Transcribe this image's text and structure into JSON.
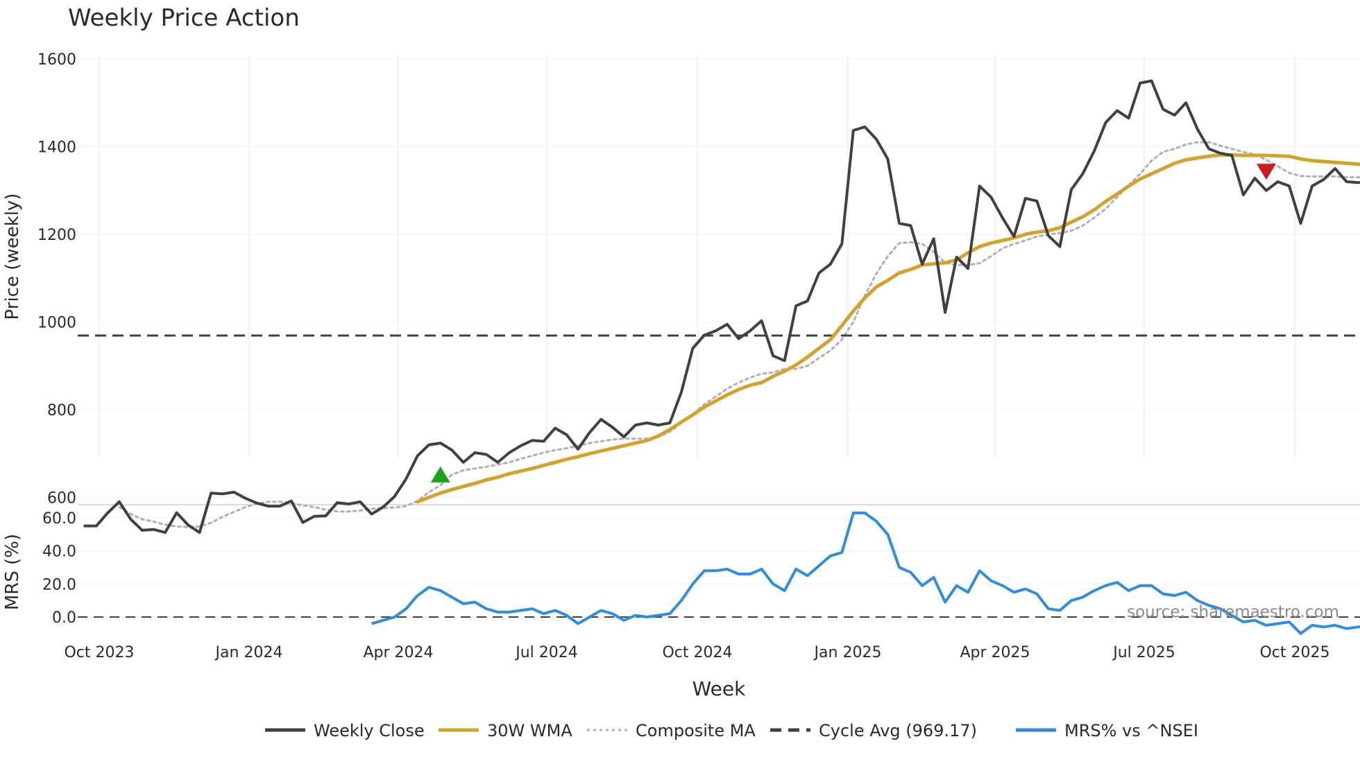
{
  "title": "Weekly Price Action",
  "watermark": "source: sharemaestro.com",
  "chart_data": {
    "type": "line",
    "xlabel": "Week",
    "x_ticks": [
      "Oct 2023",
      "Jan 2024",
      "Apr 2024",
      "Jul 2024",
      "Oct 2024",
      "Jan 2025",
      "Apr 2025",
      "Jul 2025",
      "Oct 2025"
    ],
    "price_panel": {
      "ylabel": "Price (weekly)",
      "ylim": [
        520,
        1615
      ],
      "yticks": [
        600,
        800,
        1000,
        1200,
        1400,
        1600
      ],
      "start_week_offset": -1.25,
      "series": [
        {
          "name": "Weekly Close",
          "color": "#404040",
          "style": "solid",
          "start_index": 0,
          "values": [
            535,
            535,
            565,
            590,
            550,
            525,
            527,
            520,
            565,
            537,
            520,
            610,
            608,
            612,
            598,
            587,
            580,
            580,
            592,
            543,
            557,
            558,
            588,
            585,
            590,
            562,
            578,
            602,
            642,
            695,
            720,
            724,
            708,
            680,
            702,
            698,
            680,
            702,
            718,
            730,
            728,
            758,
            743,
            710,
            748,
            778,
            760,
            738,
            765,
            770,
            765,
            770,
            840,
            940,
            970,
            980,
            995,
            962,
            980,
            1003,
            923,
            912,
            1037,
            1048,
            1112,
            1132,
            1178,
            1437,
            1445,
            1417,
            1372,
            1225,
            1220,
            1132,
            1190,
            1022,
            1148,
            1122,
            1310,
            1285,
            1238,
            1195,
            1282,
            1276,
            1197,
            1172,
            1302,
            1338,
            1390,
            1455,
            1482,
            1465,
            1545,
            1550,
            1485,
            1472,
            1500,
            1440,
            1395,
            1385,
            1380,
            1290,
            1328,
            1300,
            1320,
            1310,
            1225,
            1310,
            1325,
            1350,
            1320,
            1318,
            1320
          ]
        },
        {
          "name": "30W WMA",
          "color": "#d4a12a",
          "style": "solid",
          "start_index": 29,
          "values": [
            590,
            600,
            610,
            618,
            625,
            632,
            640,
            646,
            654,
            660,
            666,
            673,
            680,
            687,
            693,
            700,
            706,
            712,
            718,
            724,
            730,
            740,
            755,
            772,
            788,
            806,
            820,
            834,
            846,
            856,
            862,
            876,
            888,
            902,
            920,
            940,
            960,
            992,
            1025,
            1055,
            1080,
            1095,
            1112,
            1120,
            1130,
            1133,
            1135,
            1142,
            1158,
            1172,
            1180,
            1186,
            1192,
            1200,
            1205,
            1208,
            1215,
            1228,
            1240,
            1256,
            1275,
            1292,
            1310,
            1326,
            1338,
            1350,
            1362,
            1370,
            1374,
            1378,
            1381,
            1381,
            1380,
            1380,
            1380,
            1379,
            1378,
            1372,
            1368,
            1366,
            1364,
            1362,
            1360,
            1358,
            1356
          ]
        },
        {
          "name": "Composite MA",
          "color": "#b0b0b0",
          "style": "dotted",
          "start_index": 3,
          "values": [
            578,
            562,
            550,
            545,
            538,
            534,
            532,
            534,
            542,
            556,
            567,
            578,
            586,
            590,
            590,
            587,
            582,
            578,
            572,
            568,
            568,
            570,
            574,
            576,
            577,
            580,
            592,
            612,
            628,
            652,
            662,
            666,
            670,
            675,
            680,
            688,
            695,
            702,
            708,
            712,
            718,
            724,
            728,
            732,
            734,
            734,
            734,
            738,
            750,
            770,
            790,
            812,
            830,
            848,
            862,
            873,
            882,
            885,
            893,
            893,
            900,
            918,
            935,
            960,
            1000,
            1060,
            1110,
            1150,
            1180,
            1182,
            1178,
            1160,
            1135,
            1130,
            1130,
            1134,
            1150,
            1168,
            1178,
            1186,
            1195,
            1200,
            1203,
            1208,
            1220,
            1238,
            1258,
            1285,
            1312,
            1338,
            1368,
            1388,
            1395,
            1405,
            1410,
            1410,
            1402,
            1395,
            1388,
            1382,
            1370,
            1355,
            1340,
            1333,
            1332,
            1332,
            1332,
            1330,
            1330,
            1330,
            1331,
            1332,
            1332,
            1333,
            1334
          ]
        },
        {
          "name": "Cycle Avg (969.17)",
          "color": "#404040",
          "style": "dashed",
          "value": 969.17
        }
      ],
      "markers": [
        {
          "type": "buy",
          "shape": "triangle-up",
          "color": "#1aa31a",
          "week_index": 31,
          "y": 650
        },
        {
          "type": "sell",
          "shape": "triangle-down",
          "color": "#c81e1e",
          "week_index": 103,
          "y": 1345
        }
      ]
    },
    "mrs_panel": {
      "ylabel": "MRS (%)",
      "ylim": [
        -10,
        67
      ],
      "yticks": [
        0.0,
        20.0,
        40.0,
        60.0
      ],
      "ytick_labels": [
        "0.0",
        "20.0",
        "40.0",
        "60.0"
      ],
      "zero_line": 0,
      "series": [
        {
          "name": "MRS% vs ^NSEI",
          "color": "#2e8de0",
          "start_index": 25,
          "values": [
            -4,
            -2,
            0,
            5,
            13,
            18,
            16,
            12,
            8,
            9,
            5,
            3,
            3,
            4,
            5,
            2,
            4,
            1,
            -4,
            0,
            4,
            2,
            -2,
            1,
            0,
            1,
            2,
            10,
            20,
            28,
            28,
            29,
            26,
            26,
            29,
            20,
            16,
            29,
            25,
            31,
            37,
            39,
            63,
            63,
            58,
            50,
            30,
            27,
            19,
            24,
            9,
            19,
            15,
            28,
            22,
            19,
            15,
            17,
            14,
            5,
            4,
            10,
            12,
            16,
            19,
            21,
            16,
            19,
            19,
            14,
            13,
            15,
            10,
            7,
            5,
            1,
            -3,
            -2,
            -5,
            -4,
            -3,
            -10,
            -5,
            -6,
            -5,
            -7,
            -6,
            -6
          ]
        }
      ]
    },
    "legend": [
      {
        "label": "Weekly Close",
        "color": "#404040",
        "style": "solid"
      },
      {
        "label": "30W WMA",
        "color": "#d4a12a",
        "style": "solid"
      },
      {
        "label": "Composite MA",
        "color": "#b0b0b0",
        "style": "dotted"
      },
      {
        "label": "Cycle Avg (969.17)",
        "color": "#404040",
        "style": "dashed"
      },
      {
        "label": "MRS% vs ^NSEI",
        "color": "#2e8de0",
        "style": "solid"
      }
    ]
  }
}
